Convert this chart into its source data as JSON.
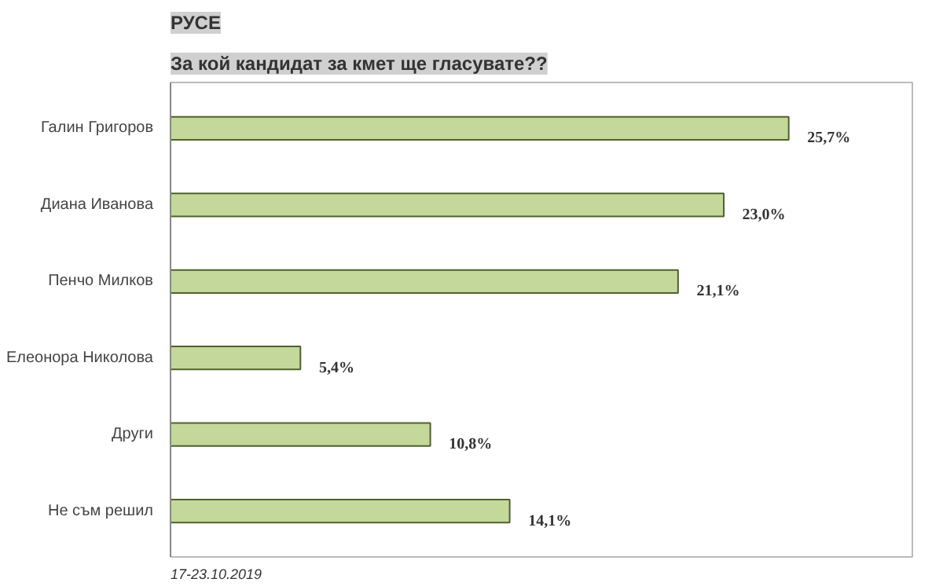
{
  "chart_data": {
    "type": "bar",
    "orientation": "horizontal",
    "title": "РУСЕ",
    "subtitle": "За кой кандидат за кмет ще гласувате??",
    "categories": [
      "Галин Григоров",
      "Диана Иванова",
      "Пенчо Милков",
      "Елеонора Николова",
      "Други",
      "Не съм решил"
    ],
    "values": [
      25.7,
      23.0,
      21.1,
      5.4,
      10.8,
      14.1
    ],
    "value_labels": [
      "25,7%",
      "23,0%",
      "21,1%",
      "5,4%",
      "10,8%",
      "14,1%"
    ],
    "color": "#c4d89c",
    "grid": false,
    "annotations": [
      "17-23.10.2019"
    ]
  }
}
